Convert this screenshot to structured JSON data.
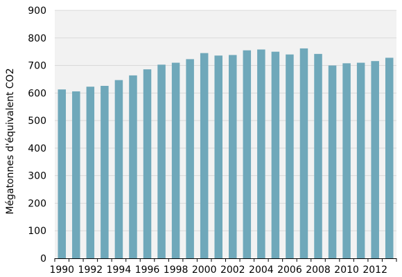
{
  "chart_data": {
    "type": "bar",
    "title": "",
    "xlabel": "",
    "ylabel": "Mégatonnes d'équivalent CO2",
    "ylim": [
      0,
      900
    ],
    "yticks": [
      0,
      100,
      200,
      300,
      400,
      500,
      600,
      700,
      800,
      900
    ],
    "grid": true,
    "legend": "none",
    "colors": {
      "bar": "#6fa8ba",
      "plot_background": "#f2f2f2",
      "grid": "#d9d9d9",
      "axis": "#000000"
    },
    "categories": [
      "1990",
      "1991",
      "1992",
      "1993",
      "1994",
      "1995",
      "1996",
      "1997",
      "1998",
      "1999",
      "2000",
      "2001",
      "2002",
      "2003",
      "2004",
      "2005",
      "2006",
      "2007",
      "2008",
      "2009",
      "2010",
      "2011",
      "2012",
      "2013"
    ],
    "x_tick_labels": [
      "1990",
      "1992",
      "1994",
      "1996",
      "1998",
      "2000",
      "2002",
      "2004",
      "2006",
      "2008",
      "2010",
      "2012"
    ],
    "values": [
      613,
      606,
      623,
      626,
      647,
      664,
      686,
      703,
      710,
      723,
      745,
      736,
      738,
      755,
      758,
      750,
      740,
      762,
      742,
      700,
      708,
      710,
      716,
      728
    ]
  }
}
